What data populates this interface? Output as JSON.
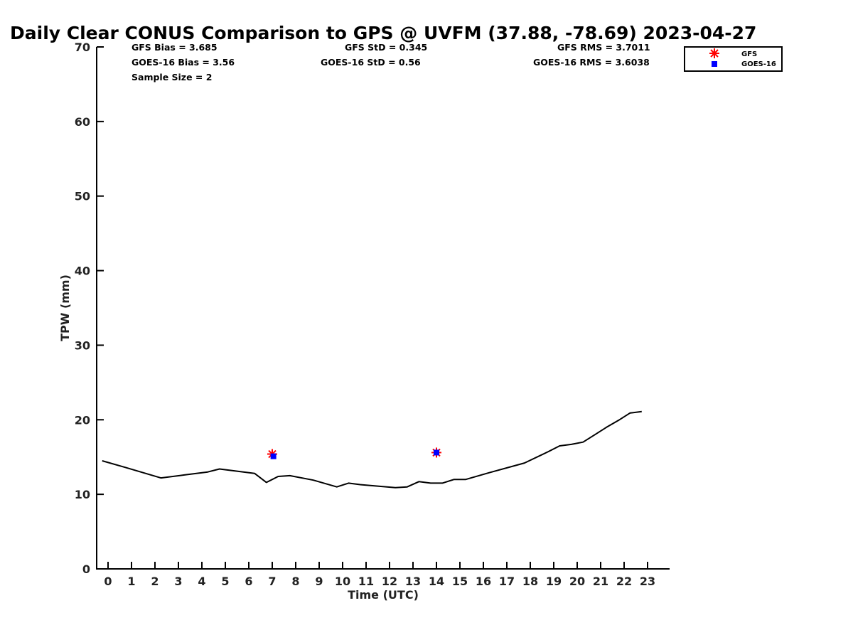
{
  "chart_data": {
    "type": "line",
    "title": "Daily Clear CONUS Comparison to GPS @ UVFM (37.88, -78.69) 2023-04-27",
    "xlabel": "Time (UTC)",
    "ylabel": "TPW (mm)",
    "xlim": [
      -0.5,
      23.7
    ],
    "ylim": [
      0,
      70
    ],
    "x_ticks": [
      0,
      1,
      2,
      3,
      4,
      5,
      6,
      7,
      8,
      9,
      10,
      11,
      12,
      13,
      14,
      15,
      16,
      17,
      18,
      19,
      20,
      21,
      22,
      23
    ],
    "y_ticks": [
      0,
      10,
      20,
      30,
      40,
      50,
      60,
      70
    ],
    "stats": {
      "gfs_bias": "GFS Bias = 3.685",
      "goes_bias": "GOES-16 Bias = 3.56",
      "sample_size": "Sample Size = 2",
      "gfs_std": "GFS StD = 0.345",
      "goes_std": "GOES-16 StD = 0.56",
      "gfs_rms": "GFS RMS = 3.7011",
      "goes_rms": "GOES-16 RMS = 3.6038"
    },
    "legend": {
      "position": "top-right",
      "entries": [
        {
          "label": "GFS",
          "color": "#ff0000",
          "marker": "asterisk"
        },
        {
          "label": "GOES-16",
          "color": "#0000ff",
          "marker": "square"
        }
      ]
    },
    "series": [
      {
        "type": "line",
        "color": "#000000",
        "x": [
          -0.25,
          0.75,
          2.25,
          3.25,
          4.25,
          4.75,
          6.25,
          6.75,
          7.25,
          7.75,
          8.75,
          9.75,
          10.25,
          10.75,
          12.25,
          12.75,
          13.25,
          13.75,
          14.25,
          14.75,
          15.25,
          16.25,
          17.75,
          18.75,
          19.25,
          19.75,
          20.25,
          20.75,
          21.25,
          21.75,
          22.25,
          22.75
        ],
        "values": [
          14.5,
          13.6,
          12.2,
          12.6,
          13.0,
          13.4,
          12.8,
          11.6,
          12.4,
          12.5,
          11.9,
          11.0,
          11.5,
          11.3,
          10.9,
          11.0,
          11.7,
          11.5,
          11.5,
          12.0,
          12.0,
          12.9,
          14.2,
          15.7,
          16.5,
          16.7,
          17.0,
          18.0,
          19.0,
          19.9,
          20.9,
          21.1
        ]
      },
      {
        "name": "GFS",
        "type": "scatter",
        "color": "#ff0000",
        "marker": "asterisk",
        "x": [
          7.0,
          14.0
        ],
        "values": [
          15.4,
          15.6
        ]
      },
      {
        "name": "GOES-16",
        "type": "scatter",
        "color": "#0000ff",
        "marker": "square",
        "x": [
          7.05,
          14.0
        ],
        "values": [
          15.1,
          15.6
        ]
      }
    ]
  }
}
